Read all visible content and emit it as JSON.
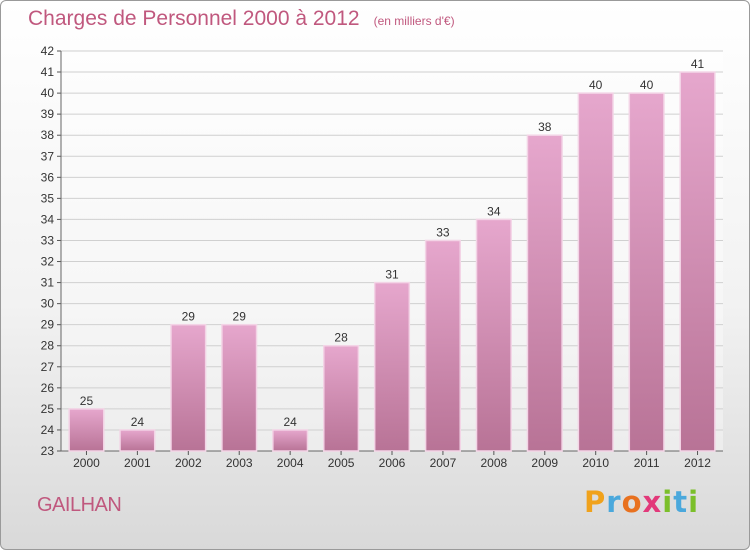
{
  "header": {
    "title": "Charges de Personnel 2000 à 2012",
    "subtitle": "(en milliers d'€)"
  },
  "footer": {
    "commune": "GAILHAN",
    "logo_letters": [
      "P",
      "r",
      "o",
      "x",
      "i",
      "t",
      "i"
    ],
    "logo_colors": [
      "#f0a21c",
      "#4aa8dc",
      "#e8711f",
      "#e2397a",
      "#7bbf2a",
      "#4aa8dc",
      "#7bbf2a"
    ]
  },
  "colors": {
    "bar_top": "#e6a7cd",
    "bar_bottom": "#b87396",
    "bar_edge": "#f3d4e6",
    "grid": "#d0d0d0",
    "accent": "#c0587e"
  },
  "chart_data": {
    "type": "bar",
    "categories": [
      "2000",
      "2001",
      "2002",
      "2003",
      "2004",
      "2005",
      "2006",
      "2007",
      "2008",
      "2009",
      "2010",
      "2011",
      "2012"
    ],
    "values": [
      25,
      24,
      29,
      29,
      24,
      28,
      31,
      33,
      34,
      38,
      40,
      40,
      41
    ],
    "title": "Charges de Personnel 2000 à 2012",
    "subtitle": "(en milliers d'€)",
    "xlabel": "",
    "ylabel": "",
    "ylim": [
      23,
      42
    ],
    "ytick_step": 1,
    "grid": true,
    "data_labels": true
  }
}
